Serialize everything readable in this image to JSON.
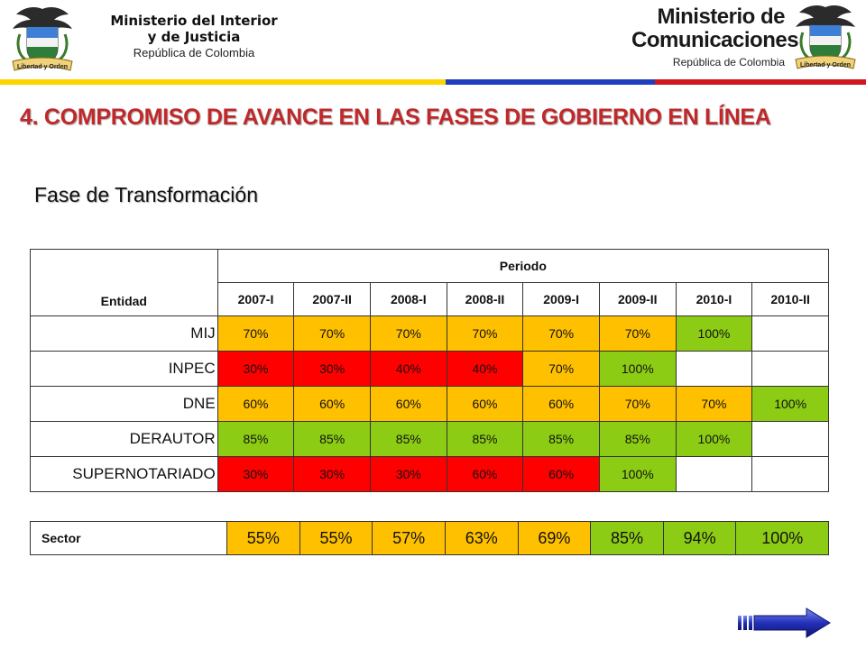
{
  "header": {
    "left_seal_caption": "Libertad y Orden",
    "left_line1": "Ministerio del Interior",
    "left_line2": "y de Justicia",
    "left_line3": "República de Colombia",
    "right_line1": "Ministerio de",
    "right_line2": "Comunicaciones",
    "right_line3": "República de Colombia",
    "right_seal_caption": "Libertad y Orden",
    "stripe_colors": [
      "#ffd500",
      "#1f3fbf",
      "#d0181f"
    ]
  },
  "title": "4. COMPROMISO DE AVANCE EN LAS FASES DE GOBIERNO EN LÍNEA",
  "subtitle": "Fase de Transformación",
  "table": {
    "col_entidad": "Entidad",
    "col_periodo": "Periodo",
    "periods": [
      "2007-I",
      "2007-II",
      "2008-I",
      "2008-II",
      "2009-I",
      "2009-II",
      "2010-I",
      "2010-II"
    ],
    "rows": [
      {
        "name": "MIJ",
        "cells": [
          {
            "v": "70%",
            "c": "yellow"
          },
          {
            "v": "70%",
            "c": "yellow"
          },
          {
            "v": "70%",
            "c": "yellow"
          },
          {
            "v": "70%",
            "c": "yellow"
          },
          {
            "v": "70%",
            "c": "yellow"
          },
          {
            "v": "70%",
            "c": "yellow"
          },
          {
            "v": "100%",
            "c": "green"
          },
          {
            "v": "",
            "c": "white"
          }
        ]
      },
      {
        "name": "INPEC",
        "cells": [
          {
            "v": "30%",
            "c": "red"
          },
          {
            "v": "30%",
            "c": "red"
          },
          {
            "v": "40%",
            "c": "red"
          },
          {
            "v": "40%",
            "c": "red"
          },
          {
            "v": "70%",
            "c": "yellow"
          },
          {
            "v": "100%",
            "c": "green"
          },
          {
            "v": "",
            "c": "white"
          },
          {
            "v": "",
            "c": "white"
          }
        ]
      },
      {
        "name": "DNE",
        "cells": [
          {
            "v": "60%",
            "c": "yellow"
          },
          {
            "v": "60%",
            "c": "yellow"
          },
          {
            "v": "60%",
            "c": "yellow"
          },
          {
            "v": "60%",
            "c": "yellow"
          },
          {
            "v": "60%",
            "c": "yellow"
          },
          {
            "v": "70%",
            "c": "yellow"
          },
          {
            "v": "70%",
            "c": "yellow"
          },
          {
            "v": "100%",
            "c": "green"
          }
        ]
      },
      {
        "name": "DERAUTOR",
        "cells": [
          {
            "v": "85%",
            "c": "green"
          },
          {
            "v": "85%",
            "c": "green"
          },
          {
            "v": "85%",
            "c": "green"
          },
          {
            "v": "85%",
            "c": "green"
          },
          {
            "v": "85%",
            "c": "green"
          },
          {
            "v": "85%",
            "c": "green"
          },
          {
            "v": "100%",
            "c": "green"
          },
          {
            "v": "",
            "c": "white"
          }
        ]
      },
      {
        "name": "SUPERNOTARIADO",
        "cells": [
          {
            "v": "30%",
            "c": "red"
          },
          {
            "v": "30%",
            "c": "red"
          },
          {
            "v": "30%",
            "c": "red"
          },
          {
            "v": "60%",
            "c": "red"
          },
          {
            "v": "60%",
            "c": "red"
          },
          {
            "v": "100%",
            "c": "green"
          },
          {
            "v": "",
            "c": "white"
          },
          {
            "v": "",
            "c": "white"
          }
        ]
      }
    ],
    "sector_label": "Sector",
    "sector_cells": [
      {
        "v": "55%",
        "c": "yellow"
      },
      {
        "v": "55%",
        "c": "yellow"
      },
      {
        "v": "57%",
        "c": "yellow"
      },
      {
        "v": "63%",
        "c": "yellow"
      },
      {
        "v": "69%",
        "c": "yellow"
      },
      {
        "v": "85%",
        "c": "green"
      },
      {
        "v": "94%",
        "c": "green"
      },
      {
        "v": "100%",
        "c": "green"
      }
    ]
  },
  "colors": {
    "yellow": "#ffc000",
    "red": "#ff0000",
    "green": "#8ccc14",
    "title": "#c0282a"
  },
  "nav": {
    "next_icon": "next-arrow-icon"
  }
}
